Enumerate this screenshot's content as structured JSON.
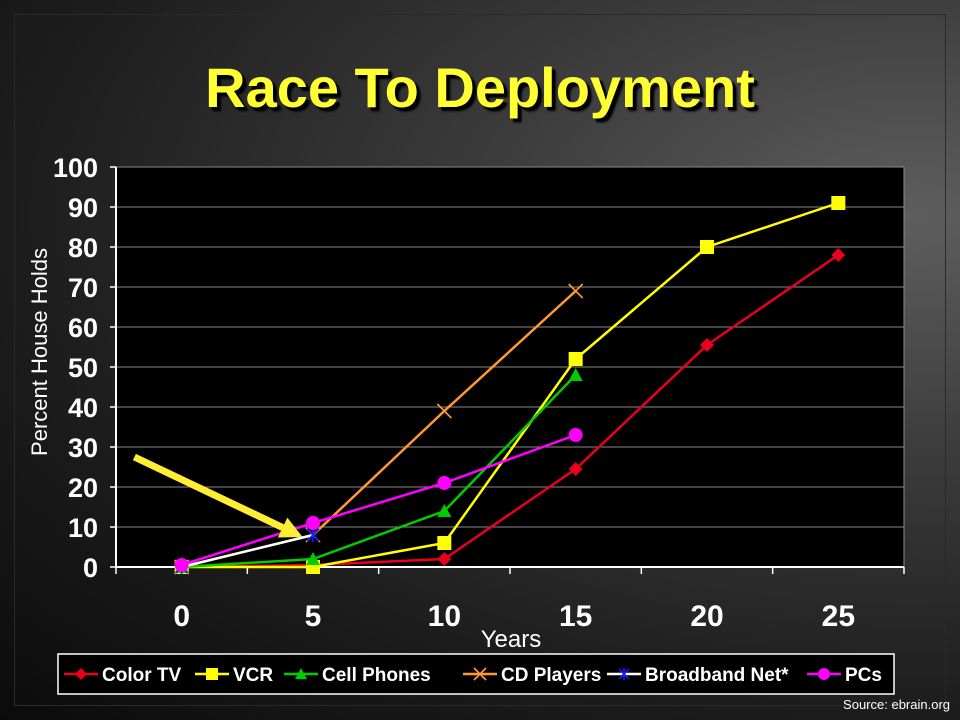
{
  "title": "Race To Deployment",
  "source": "Source: ebrain.org",
  "chart_data": {
    "type": "line",
    "xlabel": "Years",
    "ylabel": "Percent House Holds",
    "x_ticks": [
      0,
      5,
      10,
      15,
      20,
      25
    ],
    "y_ticks": [
      0,
      10,
      20,
      30,
      40,
      50,
      60,
      70,
      80,
      90,
      100
    ],
    "xlim": [
      -2.5,
      27.5
    ],
    "ylim": [
      0,
      100
    ],
    "grid": true,
    "legend_position": "bottom",
    "series": [
      {
        "name": "Color TV",
        "color": "#e8001c",
        "marker": "diamond",
        "points": [
          [
            0,
            0
          ],
          [
            5,
            0.5
          ],
          [
            10,
            2
          ],
          [
            15,
            24.5
          ],
          [
            20,
            55.5
          ],
          [
            25,
            78
          ]
        ]
      },
      {
        "name": "VCR",
        "color": "#ffff00",
        "marker": "square",
        "points": [
          [
            0,
            0
          ],
          [
            5,
            0
          ],
          [
            10,
            6
          ],
          [
            15,
            52
          ],
          [
            20,
            80
          ],
          [
            25,
            91
          ]
        ]
      },
      {
        "name": "Cell Phones",
        "color": "#00cc00",
        "marker": "triangle",
        "points": [
          [
            0,
            0
          ],
          [
            5,
            2
          ],
          [
            10,
            14
          ],
          [
            15,
            48
          ]
        ]
      },
      {
        "name": "CD Players",
        "color": "#ff9933",
        "marker": "x",
        "points": [
          [
            0,
            0
          ],
          [
            5,
            8
          ],
          [
            10,
            39
          ],
          [
            15,
            69
          ]
        ]
      },
      {
        "name": "Broadband Net*",
        "color": "#ffffff",
        "marker_color": "#1a1aff",
        "marker": "star",
        "points": [
          [
            0,
            0
          ],
          [
            5,
            8
          ]
        ]
      },
      {
        "name": "PCs",
        "color": "#ff00ff",
        "marker": "circle",
        "points": [
          [
            0,
            0.5
          ],
          [
            5,
            11
          ],
          [
            10,
            21
          ],
          [
            15,
            33
          ]
        ]
      }
    ],
    "annotations": [
      {
        "type": "arrow",
        "color": "#ffee33",
        "from": [
          -1.8,
          27.5
        ],
        "to": [
          4.6,
          7.5
        ]
      }
    ]
  }
}
